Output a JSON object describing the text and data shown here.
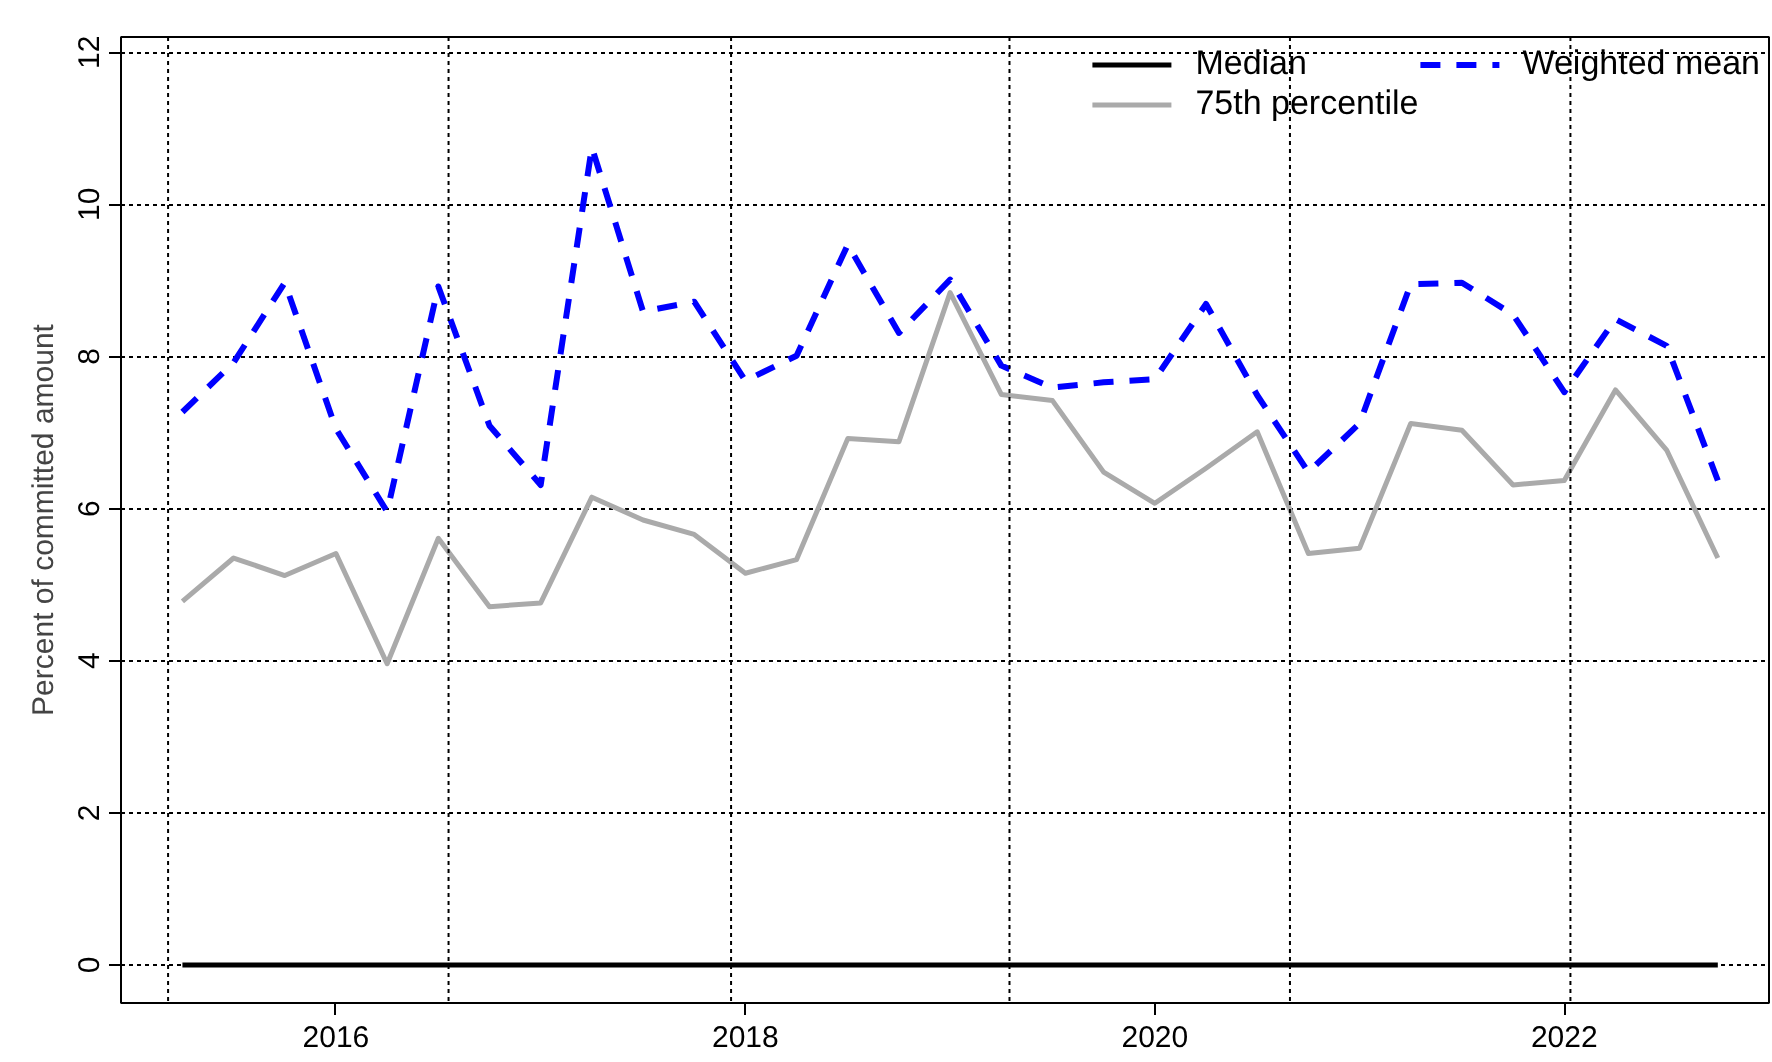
{
  "chart_data": {
    "type": "line",
    "ylabel": "Percent of committed amount",
    "x": [
      2015.25,
      2015.5,
      2015.75,
      2016.0,
      2016.25,
      2016.5,
      2016.75,
      2017.0,
      2017.25,
      2017.5,
      2017.75,
      2018.0,
      2018.25,
      2018.5,
      2018.75,
      2019.0,
      2019.25,
      2019.5,
      2019.75,
      2020.0,
      2020.25,
      2020.5,
      2020.75,
      2021.0,
      2021.25,
      2021.5,
      2021.75,
      2022.0,
      2022.25,
      2022.5,
      2022.75
    ],
    "series": [
      {
        "name": "Median",
        "color": "#000000",
        "line_style": "solid",
        "values": [
          0,
          0,
          0,
          0,
          0,
          0,
          0,
          0,
          0,
          0,
          0,
          0,
          0,
          0,
          0,
          0,
          0,
          0,
          0,
          0,
          0,
          0,
          0,
          0,
          0,
          0,
          0,
          0,
          0,
          0,
          0
        ]
      },
      {
        "name": "75th percentile",
        "color": "#aaaaaa",
        "line_style": "solid",
        "values": [
          4.78,
          5.35,
          5.12,
          5.41,
          3.96,
          5.61,
          4.71,
          4.76,
          6.15,
          5.85,
          5.66,
          5.15,
          5.33,
          6.92,
          6.88,
          8.84,
          7.5,
          7.42,
          6.48,
          6.07,
          6.53,
          7.01,
          5.41,
          5.48,
          7.12,
          7.03,
          6.31,
          6.37,
          7.56,
          6.77,
          5.35
        ]
      },
      {
        "name": "Weighted mean",
        "color": "#0000ff",
        "line_style": "dashed",
        "values": [
          7.27,
          7.92,
          8.97,
          7.05,
          5.96,
          8.92,
          7.09,
          6.31,
          10.75,
          8.59,
          8.72,
          7.68,
          8.01,
          9.47,
          8.31,
          9.01,
          7.88,
          7.59,
          7.66,
          7.7,
          8.69,
          7.49,
          6.48,
          7.12,
          8.95,
          8.97,
          8.55,
          7.53,
          8.49,
          8.14,
          6.37
        ]
      }
    ],
    "xlim": [
      2014.95,
      2023.0
    ],
    "xticks": [
      2016,
      2018,
      2020,
      2022
    ],
    "ylim": [
      -0.5,
      12.2
    ],
    "yticks": [
      0,
      2,
      4,
      6,
      8,
      10,
      12
    ],
    "grid": "y",
    "ref_lines": [
      {
        "axis": "x",
        "value": 2015.18,
        "color": "#000000",
        "line_style": "dotted"
      },
      {
        "axis": "x",
        "value": 2016.55,
        "color": "#000000",
        "line_style": "dotted"
      },
      {
        "axis": "x",
        "value": 2017.93,
        "color": "#000000",
        "line_style": "dotted"
      },
      {
        "axis": "x",
        "value": 2019.29,
        "color": "#000000",
        "line_style": "dotted"
      },
      {
        "axis": "x",
        "value": 2020.66,
        "color": "#000000",
        "line_style": "dotted"
      },
      {
        "axis": "x",
        "value": 2022.03,
        "color": "#000000",
        "line_style": "dotted"
      }
    ],
    "legend": "top right"
  }
}
